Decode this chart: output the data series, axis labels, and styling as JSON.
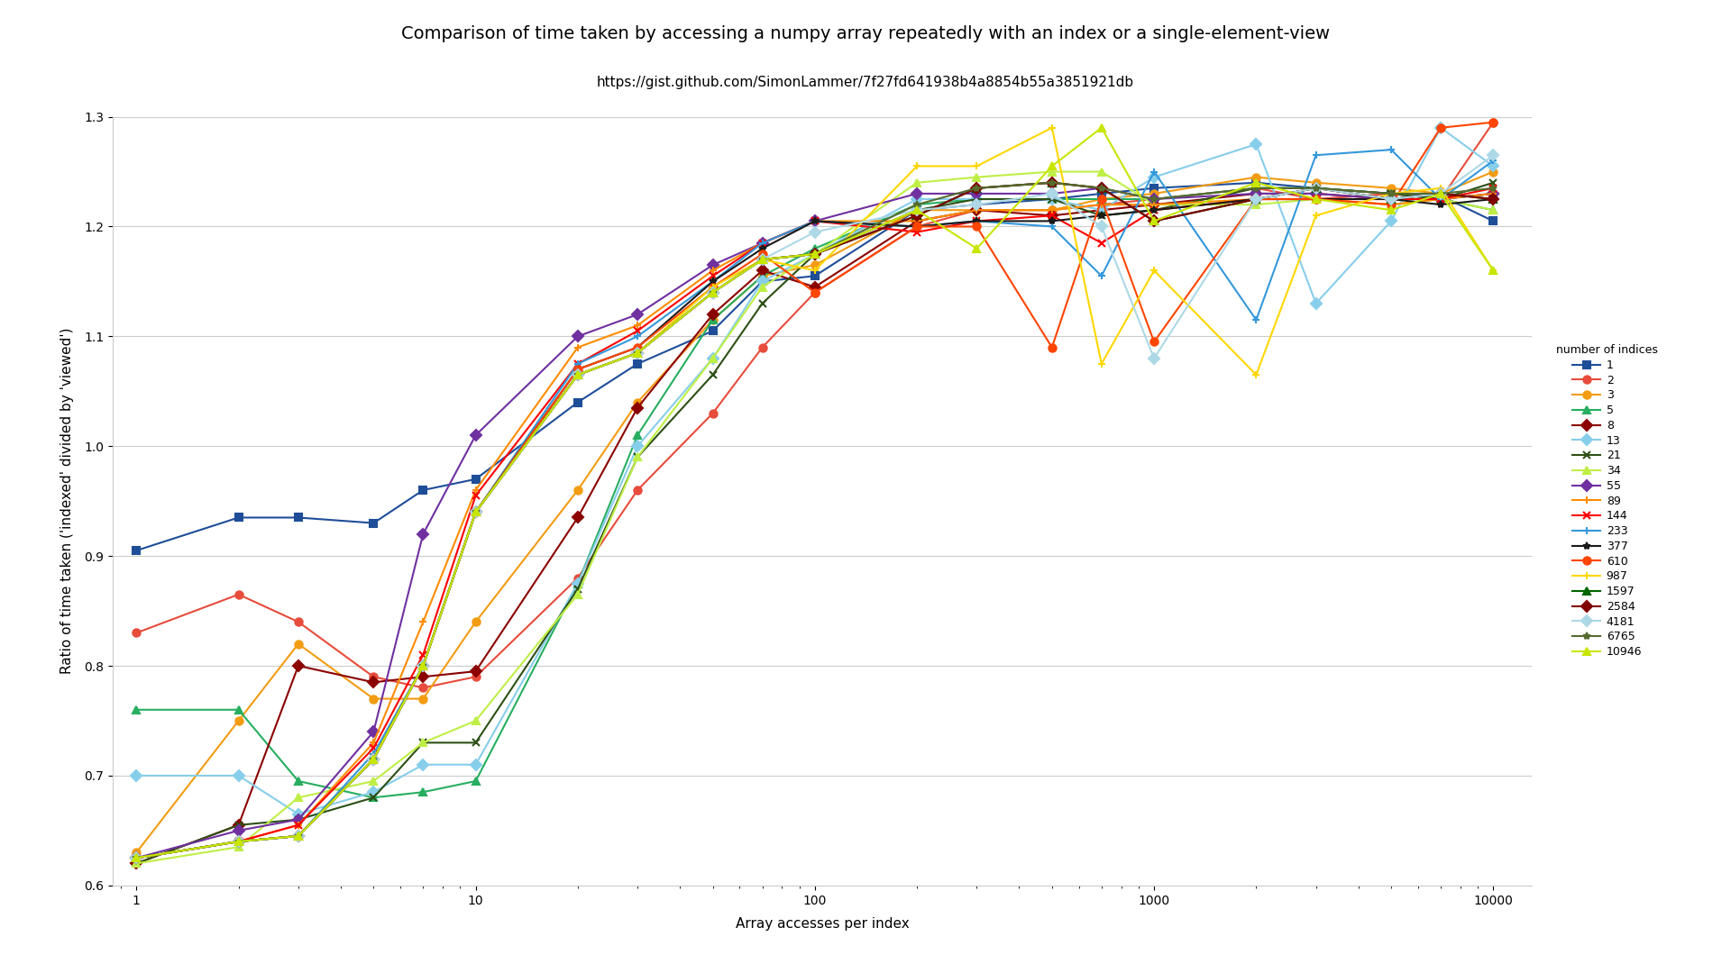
{
  "title": "Comparison of time taken by accessing a numpy array repeatedly with an index or a single-element-view",
  "subtitle": "https://gist.github.com/SimonLammer/7f27fd641938b4a8854b55a3851921db",
  "xlabel": "Array accesses per index",
  "ylabel": "Ratio of time taken ('indexed' divided by 'viewed')",
  "legend_title": "number of indices",
  "series": {
    "1": {
      "color": "#1f4e99",
      "marker": "s",
      "x": [
        1,
        2,
        3,
        5,
        7,
        10,
        20,
        30,
        50,
        70,
        100,
        200,
        300,
        500,
        700,
        1000,
        2000,
        3000,
        5000,
        7000,
        10000
      ],
      "data": [
        0.905,
        0.935,
        0.935,
        0.93,
        0.96,
        0.97,
        1.04,
        1.075,
        1.105,
        1.15,
        1.155,
        1.215,
        1.22,
        1.225,
        1.23,
        1.235,
        1.24,
        1.235,
        1.23,
        1.228,
        1.205
      ]
    },
    "2": {
      "color": "#e74c3c",
      "marker": "o",
      "x": [
        1,
        2,
        3,
        5,
        7,
        10,
        20,
        30,
        50,
        70,
        100,
        200,
        300,
        500,
        700,
        1000,
        2000,
        3000,
        5000,
        7000,
        10000
      ],
      "data": [
        0.83,
        0.865,
        0.84,
        0.79,
        0.78,
        0.79,
        0.88,
        0.96,
        1.03,
        1.09,
        1.14,
        1.2,
        1.215,
        1.215,
        1.22,
        1.225,
        1.235,
        1.225,
        1.23,
        1.225,
        1.295
      ]
    },
    "3": {
      "color": "#f39c12",
      "marker": "o",
      "x": [
        1,
        2,
        3,
        5,
        7,
        10,
        20,
        30,
        50,
        70,
        100,
        200,
        300,
        500,
        700,
        1000,
        2000,
        3000,
        5000,
        7000,
        10000
      ],
      "data": [
        0.63,
        0.75,
        0.82,
        0.77,
        0.77,
        0.84,
        0.96,
        1.04,
        1.115,
        1.155,
        1.165,
        1.215,
        1.215,
        1.215,
        1.225,
        1.23,
        1.245,
        1.24,
        1.235,
        1.23,
        1.25
      ]
    },
    "5": {
      "color": "#27ae60",
      "marker": "^",
      "x": [
        1,
        2,
        3,
        5,
        7,
        10,
        20,
        30,
        50,
        70,
        100,
        200,
        300,
        500,
        700,
        1000,
        2000,
        3000,
        5000,
        7000,
        10000
      ],
      "data": [
        0.76,
        0.76,
        0.695,
        0.68,
        0.685,
        0.695,
        0.875,
        1.01,
        1.115,
        1.155,
        1.18,
        1.22,
        1.225,
        1.225,
        1.225,
        1.225,
        1.235,
        1.235,
        1.23,
        1.225,
        1.215
      ]
    },
    "8": {
      "color": "#8b0000",
      "marker": "D",
      "x": [
        1,
        2,
        3,
        5,
        7,
        10,
        20,
        30,
        50,
        70,
        100,
        200,
        300,
        500,
        700,
        1000,
        2000,
        3000,
        5000,
        7000,
        10000
      ],
      "data": [
        0.62,
        0.655,
        0.8,
        0.785,
        0.79,
        0.795,
        0.935,
        1.035,
        1.12,
        1.16,
        1.145,
        1.205,
        1.215,
        1.21,
        1.215,
        1.22,
        1.23,
        1.23,
        1.225,
        1.225,
        1.23
      ]
    },
    "13": {
      "color": "#87ceeb",
      "marker": "D",
      "x": [
        1,
        2,
        3,
        5,
        7,
        10,
        20,
        30,
        50,
        70,
        100,
        200,
        300,
        500,
        700,
        1000,
        2000,
        3000,
        5000,
        7000,
        10000
      ],
      "data": [
        0.7,
        0.7,
        0.665,
        0.685,
        0.71,
        0.71,
        0.875,
        1.0,
        1.08,
        1.15,
        1.175,
        1.225,
        1.225,
        1.225,
        1.215,
        1.245,
        1.275,
        1.13,
        1.205,
        1.29,
        1.255
      ]
    },
    "21": {
      "color": "#2d5016",
      "marker": "x",
      "x": [
        1,
        2,
        3,
        5,
        7,
        10,
        20,
        30,
        50,
        70,
        100,
        200,
        300,
        500,
        700,
        1000,
        2000,
        3000,
        5000,
        7000,
        10000
      ],
      "data": [
        0.62,
        0.655,
        0.66,
        0.68,
        0.73,
        0.73,
        0.87,
        0.99,
        1.065,
        1.13,
        1.175,
        1.215,
        1.225,
        1.225,
        1.21,
        1.215,
        1.235,
        1.235,
        1.23,
        1.225,
        1.24
      ]
    },
    "34": {
      "color": "#bfef45",
      "marker": "^",
      "x": [
        1,
        2,
        3,
        5,
        7,
        10,
        20,
        30,
        50,
        70,
        100,
        200,
        300,
        500,
        700,
        1000,
        2000,
        3000,
        5000,
        7000,
        10000
      ],
      "data": [
        0.62,
        0.635,
        0.68,
        0.695,
        0.73,
        0.75,
        0.865,
        0.99,
        1.08,
        1.145,
        1.175,
        1.24,
        1.245,
        1.25,
        1.25,
        1.22,
        1.22,
        1.225,
        1.22,
        1.225,
        1.215
      ]
    },
    "55": {
      "color": "#7030a0",
      "marker": "D",
      "x": [
        1,
        2,
        3,
        5,
        7,
        10,
        20,
        30,
        50,
        70,
        100,
        200,
        300,
        500,
        700,
        1000,
        2000,
        3000,
        5000,
        7000,
        10000
      ],
      "data": [
        0.625,
        0.65,
        0.66,
        0.74,
        0.92,
        1.01,
        1.1,
        1.12,
        1.165,
        1.185,
        1.205,
        1.23,
        1.23,
        1.23,
        1.235,
        1.225,
        1.23,
        1.23,
        1.225,
        1.225,
        1.23
      ]
    },
    "89": {
      "color": "#ff8c00",
      "marker": "+",
      "x": [
        1,
        2,
        3,
        5,
        7,
        10,
        20,
        30,
        50,
        70,
        100,
        200,
        300,
        500,
        700,
        1000,
        2000,
        3000,
        5000,
        7000,
        10000
      ],
      "data": [
        0.625,
        0.64,
        0.655,
        0.73,
        0.84,
        0.96,
        1.09,
        1.11,
        1.16,
        1.185,
        1.205,
        1.205,
        1.215,
        1.215,
        1.22,
        1.22,
        1.225,
        1.225,
        1.22,
        1.225,
        1.23
      ]
    },
    "144": {
      "color": "#ff0000",
      "marker": "x",
      "x": [
        1,
        2,
        3,
        5,
        7,
        10,
        20,
        30,
        50,
        70,
        100,
        200,
        300,
        500,
        700,
        1000,
        2000,
        3000,
        5000,
        7000,
        10000
      ],
      "data": [
        0.625,
        0.64,
        0.655,
        0.725,
        0.81,
        0.955,
        1.075,
        1.105,
        1.155,
        1.185,
        1.205,
        1.195,
        1.205,
        1.21,
        1.185,
        1.215,
        1.225,
        1.225,
        1.225,
        1.225,
        1.235
      ]
    },
    "233": {
      "color": "#3498db",
      "marker": "+",
      "x": [
        1,
        2,
        3,
        5,
        7,
        10,
        20,
        30,
        50,
        70,
        100,
        200,
        300,
        500,
        700,
        1000,
        2000,
        3000,
        5000,
        7000,
        10000
      ],
      "data": [
        0.625,
        0.64,
        0.645,
        0.72,
        0.8,
        0.94,
        1.075,
        1.1,
        1.15,
        1.185,
        1.205,
        1.2,
        1.205,
        1.2,
        1.155,
        1.25,
        1.115,
        1.265,
        1.27,
        1.225,
        1.26
      ]
    },
    "377": {
      "color": "#1a1a1a",
      "marker": "*",
      "x": [
        1,
        2,
        3,
        5,
        7,
        10,
        20,
        30,
        50,
        70,
        100,
        200,
        300,
        500,
        700,
        1000,
        2000,
        3000,
        5000,
        7000,
        10000
      ],
      "data": [
        0.625,
        0.64,
        0.645,
        0.715,
        0.8,
        0.94,
        1.07,
        1.09,
        1.15,
        1.18,
        1.205,
        1.2,
        1.205,
        1.205,
        1.21,
        1.215,
        1.225,
        1.225,
        1.225,
        1.22,
        1.225
      ]
    },
    "610": {
      "color": "#ff4500",
      "marker": "o",
      "x": [
        1,
        2,
        3,
        5,
        7,
        10,
        20,
        30,
        50,
        70,
        100,
        200,
        300,
        500,
        700,
        1000,
        2000,
        3000,
        5000,
        7000,
        10000
      ],
      "data": [
        0.625,
        0.64,
        0.645,
        0.715,
        0.8,
        0.94,
        1.07,
        1.09,
        1.145,
        1.175,
        1.14,
        1.2,
        1.2,
        1.09,
        1.225,
        1.095,
        1.225,
        1.225,
        1.22,
        1.29,
        1.295
      ]
    },
    "987": {
      "color": "#ffd700",
      "marker": "+",
      "x": [
        1,
        2,
        3,
        5,
        7,
        10,
        20,
        30,
        50,
        70,
        100,
        200,
        300,
        500,
        700,
        1000,
        2000,
        3000,
        5000,
        7000,
        10000
      ],
      "data": [
        0.625,
        0.64,
        0.645,
        0.715,
        0.8,
        0.94,
        1.065,
        1.085,
        1.145,
        1.17,
        1.16,
        1.255,
        1.255,
        1.29,
        1.075,
        1.16,
        1.065,
        1.21,
        1.23,
        1.235,
        1.16
      ]
    },
    "1597": {
      "color": "#006400",
      "marker": "^",
      "x": [
        1,
        2,
        3,
        5,
        7,
        10,
        20,
        30,
        50,
        70,
        100,
        200,
        300,
        500,
        700,
        1000,
        2000,
        3000,
        5000,
        7000,
        10000
      ],
      "data": [
        0.625,
        0.64,
        0.645,
        0.715,
        0.8,
        0.94,
        1.065,
        1.085,
        1.14,
        1.17,
        1.175,
        1.21,
        1.235,
        1.24,
        1.235,
        1.205,
        1.225,
        1.235,
        1.225,
        1.23,
        1.225
      ]
    },
    "2584": {
      "color": "#800000",
      "marker": "D",
      "x": [
        1,
        2,
        3,
        5,
        7,
        10,
        20,
        30,
        50,
        70,
        100,
        200,
        300,
        500,
        700,
        1000,
        2000,
        3000,
        5000,
        7000,
        10000
      ],
      "data": [
        0.625,
        0.64,
        0.645,
        0.715,
        0.8,
        0.94,
        1.065,
        1.085,
        1.14,
        1.17,
        1.175,
        1.21,
        1.235,
        1.24,
        1.235,
        1.205,
        1.225,
        1.235,
        1.225,
        1.23,
        1.225
      ]
    },
    "4181": {
      "color": "#add8e6",
      "marker": "D",
      "x": [
        1,
        2,
        3,
        5,
        7,
        10,
        20,
        30,
        50,
        70,
        100,
        200,
        300,
        500,
        700,
        1000,
        2000,
        3000,
        5000,
        7000,
        10000
      ],
      "data": [
        0.625,
        0.64,
        0.645,
        0.715,
        0.8,
        0.94,
        1.065,
        1.085,
        1.14,
        1.17,
        1.195,
        1.215,
        1.22,
        1.23,
        1.2,
        1.08,
        1.225,
        1.235,
        1.225,
        1.23,
        1.265
      ]
    },
    "6765": {
      "color": "#556b2f",
      "marker": "*",
      "x": [
        1,
        2,
        3,
        5,
        7,
        10,
        20,
        30,
        50,
        70,
        100,
        200,
        300,
        500,
        700,
        1000,
        2000,
        3000,
        5000,
        7000,
        10000
      ],
      "data": [
        0.625,
        0.64,
        0.645,
        0.715,
        0.8,
        0.94,
        1.065,
        1.085,
        1.14,
        1.17,
        1.175,
        1.22,
        1.235,
        1.24,
        1.235,
        1.225,
        1.235,
        1.235,
        1.23,
        1.23,
        1.235
      ]
    },
    "10946": {
      "color": "#c8e600",
      "marker": "^",
      "x": [
        1,
        2,
        3,
        5,
        7,
        10,
        20,
        30,
        50,
        70,
        100,
        200,
        300,
        500,
        700,
        1000,
        2000,
        3000,
        5000,
        7000,
        10000
      ],
      "data": [
        0.625,
        0.64,
        0.645,
        0.715,
        0.8,
        0.94,
        1.065,
        1.085,
        1.14,
        1.17,
        1.175,
        1.215,
        1.18,
        1.255,
        1.29,
        1.205,
        1.24,
        1.225,
        1.215,
        1.23,
        1.16
      ]
    }
  },
  "background_color": "#ffffff",
  "ylim": [
    0.6,
    1.3
  ],
  "yticks": [
    0.6,
    0.7,
    0.8,
    0.9,
    1.0,
    1.1,
    1.2,
    1.3
  ],
  "title_fontsize": 14,
  "subtitle_fontsize": 11,
  "axis_label_fontsize": 11,
  "tick_fontsize": 10,
  "legend_fontsize": 9
}
